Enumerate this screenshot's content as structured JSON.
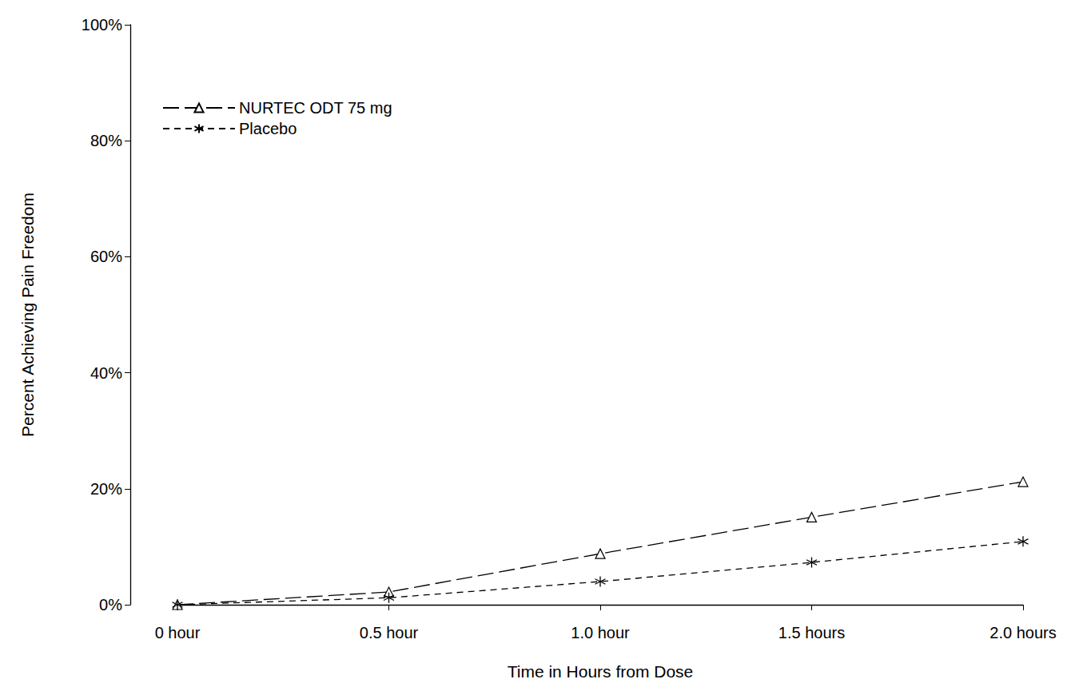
{
  "chart_data": {
    "type": "line",
    "x_label": "Time in Hours from Dose",
    "y_label": "Percent Achieving Pain Freedom",
    "categories": [
      "0 hour",
      "0.5 hour",
      "1.0 hour",
      "1.5 hours",
      "2.0 hours"
    ],
    "series": [
      {
        "name": "NURTEC ODT 75 mg",
        "color": "#000000",
        "marker": "triangle",
        "line_style": "longdash",
        "values": [
          0,
          2.2,
          8.8,
          15.1,
          21.2
        ]
      },
      {
        "name": "Placebo",
        "color": "#000000",
        "marker": "asterisk",
        "line_style": "dashed",
        "values": [
          0,
          1.2,
          4.0,
          7.3,
          10.9
        ]
      }
    ],
    "ylim": [
      0,
      100
    ],
    "yticks": [
      {
        "value": 0,
        "label": "0%"
      },
      {
        "value": 20,
        "label": "20%"
      },
      {
        "value": 40,
        "label": "40%"
      },
      {
        "value": 60,
        "label": "60%"
      },
      {
        "value": 80,
        "label": "80%"
      },
      {
        "value": 100,
        "label": "100%"
      }
    ],
    "grid": false,
    "legend": "upper left"
  }
}
